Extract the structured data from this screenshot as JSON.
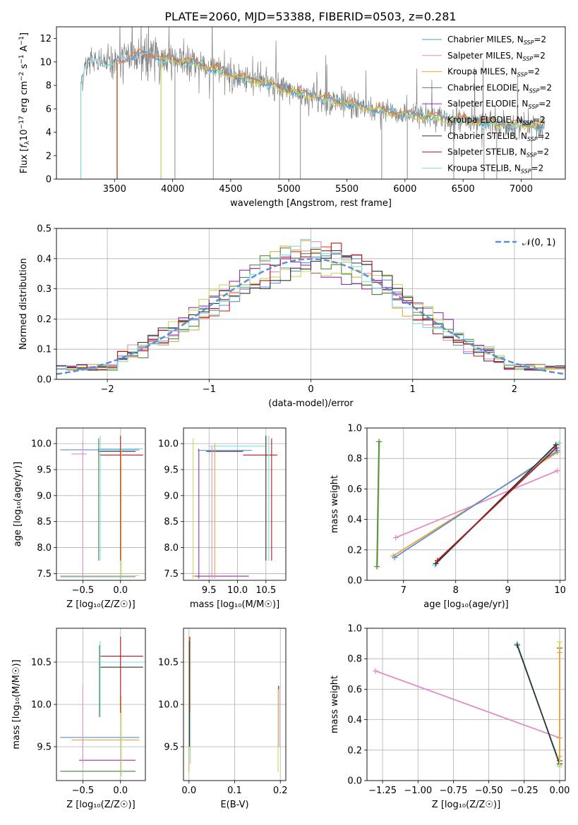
{
  "figure_title": "PLATE=2060, MJD=53388, FIBERID=0503, z=0.281",
  "colors": {
    "chabrier_miles": "#5b8fd6",
    "salpeter_miles": "#e48bc6",
    "kroupa_miles": "#e7a83a",
    "chabrier_elodie": "#4f8a4f",
    "salpeter_elodie": "#9a2fb0",
    "kroupa_elodie": "#c8d85a",
    "chabrier_stelib": "#333333",
    "salpeter_stelib": "#b01818",
    "kroupa_stelib": "#80d8e0",
    "data": "#808080",
    "orange": "#f07a30",
    "normal": "#5b8fd6"
  },
  "chart_data": [
    {
      "id": "spectrum",
      "type": "line",
      "xlabel": "wavelength [Angstrom, rest frame]",
      "ylabel_parts": [
        "Flux [",
        "f",
        "λ",
        "10",
        "−17",
        " erg cm",
        "−2",
        " s",
        "−1",
        " A",
        "−1",
        "]"
      ],
      "xlim": [
        3000,
        7380
      ],
      "ylim": [
        0,
        13
      ],
      "xticks": [
        "3500",
        "4000",
        "4500",
        "5000",
        "5500",
        "6000",
        "6500",
        "7000"
      ],
      "yticks": [
        "0",
        "2",
        "4",
        "6",
        "8",
        "10",
        "12"
      ],
      "legend_position": "top-right",
      "legend": [
        {
          "label": "Chabrier MILES, N",
          "sub": "SSP",
          "suffix": "=2",
          "color_key": "chabrier_miles"
        },
        {
          "label": "Salpeter MILES, N",
          "sub": "SSP",
          "suffix": "=2",
          "color_key": "salpeter_miles"
        },
        {
          "label": "Kroupa MILES, N",
          "sub": "SSP",
          "suffix": "=2",
          "color_key": "kroupa_miles"
        },
        {
          "label": "Chabrier ELODIE, N",
          "sub": "SSP",
          "suffix": "=2",
          "color_key": "chabrier_elodie"
        },
        {
          "label": "Salpeter ELODIE, N",
          "sub": "SSP",
          "suffix": "=2",
          "color_key": "salpeter_elodie"
        },
        {
          "label": "Kroupa ELODIE, N",
          "sub": "SSP",
          "suffix": "=2",
          "color_key": "kroupa_elodie"
        },
        {
          "label": "Chabrier STELIB, N",
          "sub": "SSP",
          "suffix": "=2",
          "color_key": "chabrier_stelib"
        },
        {
          "label": "Salpeter STELIB, N",
          "sub": "SSP",
          "suffix": "=2",
          "color_key": "salpeter_stelib"
        },
        {
          "label": "Kroupa STELIB, N",
          "sub": "SSP",
          "suffix": "=2",
          "color_key": "kroupa_stelib"
        }
      ],
      "continuum": [
        [
          3200,
          8.0
        ],
        [
          3250,
          9.6
        ],
        [
          3300,
          10.1
        ],
        [
          3400,
          10.0
        ],
        [
          3500,
          9.8
        ],
        [
          3600,
          10.3
        ],
        [
          3700,
          10.6
        ],
        [
          3800,
          10.7
        ],
        [
          3900,
          10.2
        ],
        [
          4000,
          10.3
        ],
        [
          4200,
          9.8
        ],
        [
          4400,
          9.2
        ],
        [
          4600,
          8.6
        ],
        [
          4800,
          8.2
        ],
        [
          5000,
          7.5
        ],
        [
          5200,
          7.1
        ],
        [
          5400,
          6.6
        ],
        [
          5600,
          6.2
        ],
        [
          5800,
          5.8
        ],
        [
          6000,
          5.5
        ],
        [
          6200,
          5.3
        ],
        [
          6400,
          5.1
        ],
        [
          6600,
          4.9
        ],
        [
          6800,
          4.7
        ],
        [
          7000,
          4.6
        ],
        [
          7200,
          4.5
        ]
      ]
    },
    {
      "id": "residuals",
      "type": "line",
      "xlabel": "(data-model)/error",
      "ylabel": "Normed distribution",
      "xlim": [
        -2.5,
        2.5
      ],
      "ylim": [
        0,
        0.5
      ],
      "xticks": [
        "−2",
        "−1",
        "0",
        "1",
        "2"
      ],
      "yticks": [
        "0.0",
        "0.1",
        "0.2",
        "0.3",
        "0.4",
        "0.5"
      ],
      "grid": true,
      "legend_position": "top-right",
      "legend_label": "𝒩(0, 1)",
      "normal_mean": 0,
      "normal_sigma": 1
    },
    {
      "id": "age_vs_Z",
      "type": "scatter",
      "xlabel": "Z [log₁₀(Z/Z☉)]",
      "ylabel": "age  [log₁₀(age/yr)]",
      "xlim": [
        -0.85,
        0.33
      ],
      "ylim": [
        7.37,
        10.3
      ],
      "xticks": [
        "−0.5",
        "0.0"
      ],
      "yticks": [
        "7.5",
        "8.0",
        "8.5",
        "9.0",
        "9.5",
        "10.0"
      ],
      "grid": true
    },
    {
      "id": "age_vs_mass",
      "type": "scatter",
      "xlabel": "mass [log₁₀(M/M☉)]",
      "ylabel": "",
      "xlim": [
        9.05,
        10.85
      ],
      "ylim": [
        7.37,
        10.3
      ],
      "xticks": [
        "9.5",
        "10.0",
        "10.5"
      ],
      "yticks": [
        "7.5",
        "8.0",
        "8.5",
        "9.0",
        "9.5",
        "10.0"
      ],
      "grid": true
    },
    {
      "id": "weight_vs_age",
      "type": "line",
      "xlabel": "age  [log₁₀(age/yr)]",
      "ylabel": "mass weight",
      "xlim": [
        6.3,
        10.1
      ],
      "ylim": [
        0,
        1.0
      ],
      "xticks": [
        "7",
        "8",
        "9",
        "10"
      ],
      "yticks": [
        "0.0",
        "0.2",
        "0.4",
        "0.6",
        "0.8",
        "1.0"
      ],
      "grid": true,
      "series": [
        {
          "color_key": "salpeter_miles",
          "x": [
            6.85,
            9.95
          ],
          "y": [
            0.28,
            0.72
          ]
        },
        {
          "color_key": "kroupa_miles",
          "x": [
            6.8,
            9.95
          ],
          "y": [
            0.16,
            0.84
          ]
        },
        {
          "color_key": "chabrier_miles",
          "x": [
            6.83,
            9.95
          ],
          "y": [
            0.15,
            0.85
          ]
        },
        {
          "color_key": "kroupa_stelib",
          "x": [
            7.6,
            9.98
          ],
          "y": [
            0.1,
            0.9
          ]
        },
        {
          "color_key": "chabrier_stelib",
          "x": [
            7.62,
            9.92
          ],
          "y": [
            0.11,
            0.89
          ]
        },
        {
          "color_key": "salpeter_stelib",
          "x": [
            7.65,
            9.93
          ],
          "y": [
            0.13,
            0.87
          ]
        },
        {
          "color_key": "kroupa_elodie",
          "x": [
            6.5,
            6.54
          ],
          "y": [
            0.09,
            0.91
          ]
        },
        {
          "color_key": "chabrier_elodie",
          "x": [
            6.49,
            6.53
          ],
          "y": [
            0.09,
            0.91
          ]
        }
      ]
    },
    {
      "id": "mass_vs_Z",
      "type": "scatter",
      "xlabel": "Z [log₁₀(Z/Z☉)]",
      "ylabel": "mass [log₁₀(M/M☉)]",
      "xlim": [
        -0.85,
        0.33
      ],
      "ylim": [
        9.1,
        10.9
      ],
      "xticks": [
        "−0.5",
        "0.0"
      ],
      "yticks": [
        "9.5",
        "10.0",
        "10.5"
      ],
      "grid": true
    },
    {
      "id": "mass_vs_ebv",
      "type": "scatter",
      "xlabel": "E(B-V)",
      "ylabel": "",
      "xlim": [
        -0.012,
        0.212
      ],
      "ylim": [
        9.1,
        10.9
      ],
      "xticks": [
        "0.0",
        "0.1",
        "0.2"
      ],
      "yticks": [
        "9.5",
        "10.0",
        "10.5"
      ],
      "grid": true
    },
    {
      "id": "weight_vs_Z",
      "type": "line",
      "xlabel": "Z [log₁₀(Z/Z☉)]",
      "ylabel": "mass weight",
      "xlim": [
        -1.36,
        0.04
      ],
      "ylim": [
        0,
        1.0
      ],
      "xticks": [
        "−1.25",
        "−1.00",
        "−0.75",
        "−0.50",
        "−0.25",
        "0.00"
      ],
      "yticks": [
        "0.0",
        "0.2",
        "0.4",
        "0.6",
        "0.8",
        "1.0"
      ],
      "grid": true,
      "series": [
        {
          "color_key": "salpeter_miles",
          "x": [
            -1.3,
            0.0
          ],
          "y": [
            0.72,
            0.28
          ]
        },
        {
          "color_key": "kroupa_stelib",
          "x": [
            -0.3,
            0.0
          ],
          "y": [
            0.9,
            0.1
          ]
        },
        {
          "color_key": "chabrier_stelib",
          "x": [
            -0.3,
            0.0
          ],
          "y": [
            0.89,
            0.11
          ]
        },
        {
          "color_key": "salpeter_stelib",
          "x": [
            0.0,
            0.0
          ],
          "y": [
            0.87,
            0.13
          ]
        },
        {
          "color_key": "kroupa_elodie",
          "x": [
            0.0,
            0.0
          ],
          "y": [
            0.91,
            0.09
          ]
        },
        {
          "color_key": "kroupa_miles",
          "x": [
            0.0,
            0.0
          ],
          "y": [
            0.84,
            0.16
          ]
        }
      ]
    }
  ]
}
